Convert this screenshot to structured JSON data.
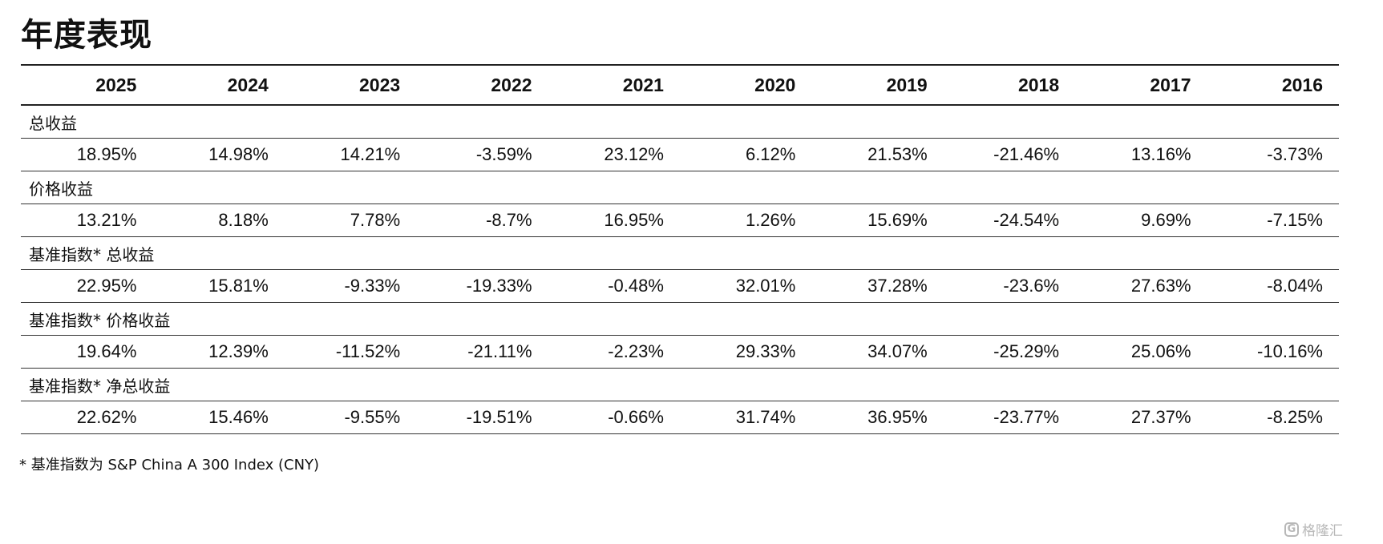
{
  "title": "年度表现",
  "years": [
    "2025",
    "2024",
    "2023",
    "2022",
    "2021",
    "2020",
    "2019",
    "2018",
    "2017",
    "2016"
  ],
  "sections": [
    {
      "label": "总收益",
      "values": [
        "18.95%",
        "14.98%",
        "14.21%",
        "-3.59%",
        "23.12%",
        "6.12%",
        "21.53%",
        "-21.46%",
        "13.16%",
        "-3.73%"
      ]
    },
    {
      "label": "价格收益",
      "values": [
        "13.21%",
        "8.18%",
        "7.78%",
        "-8.7%",
        "16.95%",
        "1.26%",
        "15.69%",
        "-24.54%",
        "9.69%",
        "-7.15%"
      ]
    },
    {
      "label": "基准指数* 总收益",
      "values": [
        "22.95%",
        "15.81%",
        "-9.33%",
        "-19.33%",
        "-0.48%",
        "32.01%",
        "37.28%",
        "-23.6%",
        "27.63%",
        "-8.04%"
      ]
    },
    {
      "label": "基准指数* 价格收益",
      "values": [
        "19.64%",
        "12.39%",
        "-11.52%",
        "-21.11%",
        "-2.23%",
        "29.33%",
        "34.07%",
        "-25.29%",
        "25.06%",
        "-10.16%"
      ]
    },
    {
      "label": "基准指数* 净总收益",
      "values": [
        "22.62%",
        "15.46%",
        "-9.55%",
        "-19.51%",
        "-0.66%",
        "31.74%",
        "36.95%",
        "-23.77%",
        "27.37%",
        "-8.25%"
      ]
    }
  ],
  "footnote": "* 基准指数为 S&P China A 300 Index (CNY)",
  "watermark": {
    "logo_letter": "G",
    "text": "格隆汇"
  }
}
